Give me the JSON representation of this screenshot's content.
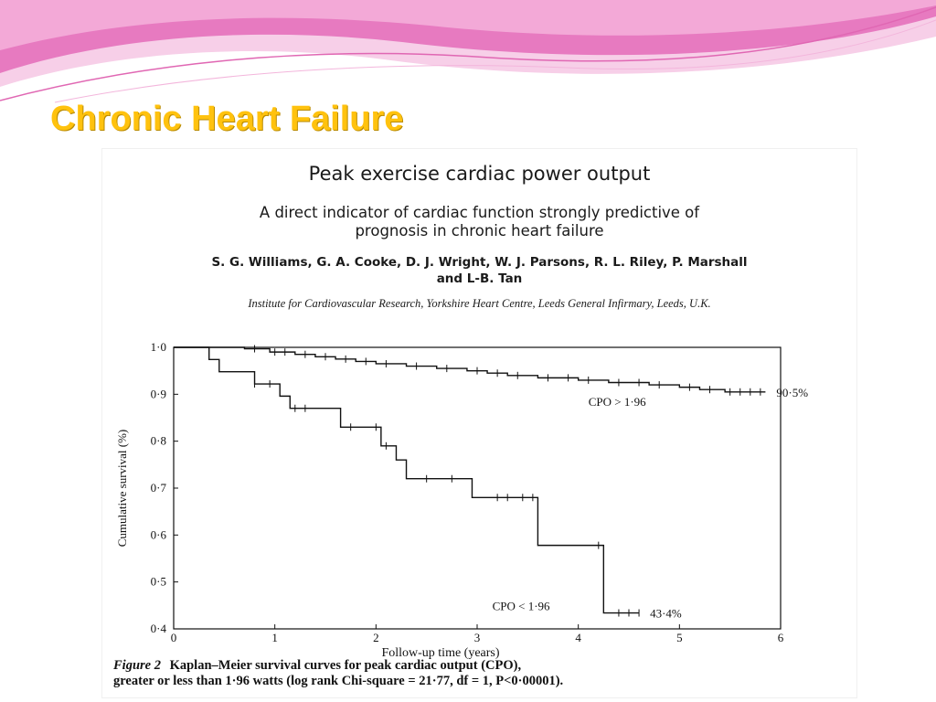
{
  "slide": {
    "title": "Chronic Heart Failure",
    "theme_colors": {
      "title": "#ffc20e",
      "wave_pink": "#e86ab8",
      "wave_light": "#f6c6e4"
    }
  },
  "paper": {
    "title": "Peak exercise cardiac power output",
    "subtitle_line1": "A direct indicator of cardiac function strongly predictive of",
    "subtitle_line2": "prognosis in chronic heart failure",
    "authors_line1": "S. G. Williams, G. A. Cooke, D. J. Wright, W. J. Parsons, R. L. Riley, P. Marshall",
    "authors_line2": "and L-B. Tan",
    "affiliation": "Institute for Cardiovascular Research, Yorkshire Heart Centre, Leeds General Infirmary, Leeds, U.K."
  },
  "figure": {
    "label": "Figure 2",
    "caption_line1": "Kaplan–Meier survival curves for peak cardiac output (CPO),",
    "caption_line2": "greater or less than 1·96 watts (log rank Chi-square = 21·77, df = 1, P<0·00001)."
  },
  "chart_data": {
    "type": "line",
    "step": true,
    "xlabel": "Follow-up time (years)",
    "ylabel": "Cumulative survival (%)",
    "xlim": [
      0,
      6
    ],
    "ylim": [
      0.4,
      1.0
    ],
    "x_ticks": [
      0,
      1,
      2,
      3,
      4,
      5,
      6
    ],
    "x_tick_labels": [
      "0",
      "1",
      "2",
      "3",
      "4",
      "5",
      "6"
    ],
    "y_ticks": [
      0.4,
      0.5,
      0.6,
      0.7,
      0.8,
      0.9,
      1.0
    ],
    "y_tick_labels": [
      "0·4",
      "0·5",
      "0·6",
      "0·7",
      "0·8",
      "0·9",
      "1·0"
    ],
    "grid": false,
    "series": [
      {
        "name": "CPO > 1·96",
        "end_label": "90·5%",
        "steps": [
          [
            0,
            1.0
          ],
          [
            0.7,
            0.997
          ],
          [
            0.95,
            0.99
          ],
          [
            1.2,
            0.985
          ],
          [
            1.4,
            0.98
          ],
          [
            1.6,
            0.975
          ],
          [
            1.8,
            0.97
          ],
          [
            2.0,
            0.965
          ],
          [
            2.3,
            0.96
          ],
          [
            2.6,
            0.955
          ],
          [
            2.9,
            0.95
          ],
          [
            3.1,
            0.945
          ],
          [
            3.3,
            0.94
          ],
          [
            3.6,
            0.935
          ],
          [
            4.0,
            0.93
          ],
          [
            4.3,
            0.925
          ],
          [
            4.7,
            0.92
          ],
          [
            5.0,
            0.915
          ],
          [
            5.2,
            0.91
          ],
          [
            5.45,
            0.905
          ],
          [
            5.85,
            0.905
          ]
        ],
        "censored": [
          0.8,
          1.0,
          1.1,
          1.3,
          1.5,
          1.7,
          1.9,
          2.1,
          2.4,
          2.7,
          3.0,
          3.2,
          3.4,
          3.7,
          3.9,
          4.1,
          4.4,
          4.6,
          4.8,
          5.1,
          5.3,
          5.5,
          5.6,
          5.7,
          5.8
        ]
      },
      {
        "name": "CPO < 1·96",
        "end_label": "43·4%",
        "steps": [
          [
            0,
            1.0
          ],
          [
            0.35,
            0.974
          ],
          [
            0.45,
            0.948
          ],
          [
            0.8,
            0.922
          ],
          [
            1.05,
            0.896
          ],
          [
            1.15,
            0.87
          ],
          [
            1.65,
            0.83
          ],
          [
            2.05,
            0.79
          ],
          [
            2.2,
            0.76
          ],
          [
            2.3,
            0.72
          ],
          [
            2.95,
            0.68
          ],
          [
            3.6,
            0.578
          ],
          [
            4.25,
            0.434
          ],
          [
            4.6,
            0.434
          ]
        ],
        "censored": [
          0.8,
          0.95,
          1.2,
          1.3,
          1.75,
          2.0,
          2.1,
          2.5,
          2.75,
          3.2,
          3.3,
          3.45,
          3.55,
          4.2,
          4.4,
          4.5,
          4.6
        ]
      }
    ],
    "annotations": [
      {
        "text": "CPO > 1·96",
        "x": 4.1,
        "y": 0.875
      },
      {
        "text": "CPO < 1·96",
        "x": 3.15,
        "y": 0.44
      }
    ]
  }
}
